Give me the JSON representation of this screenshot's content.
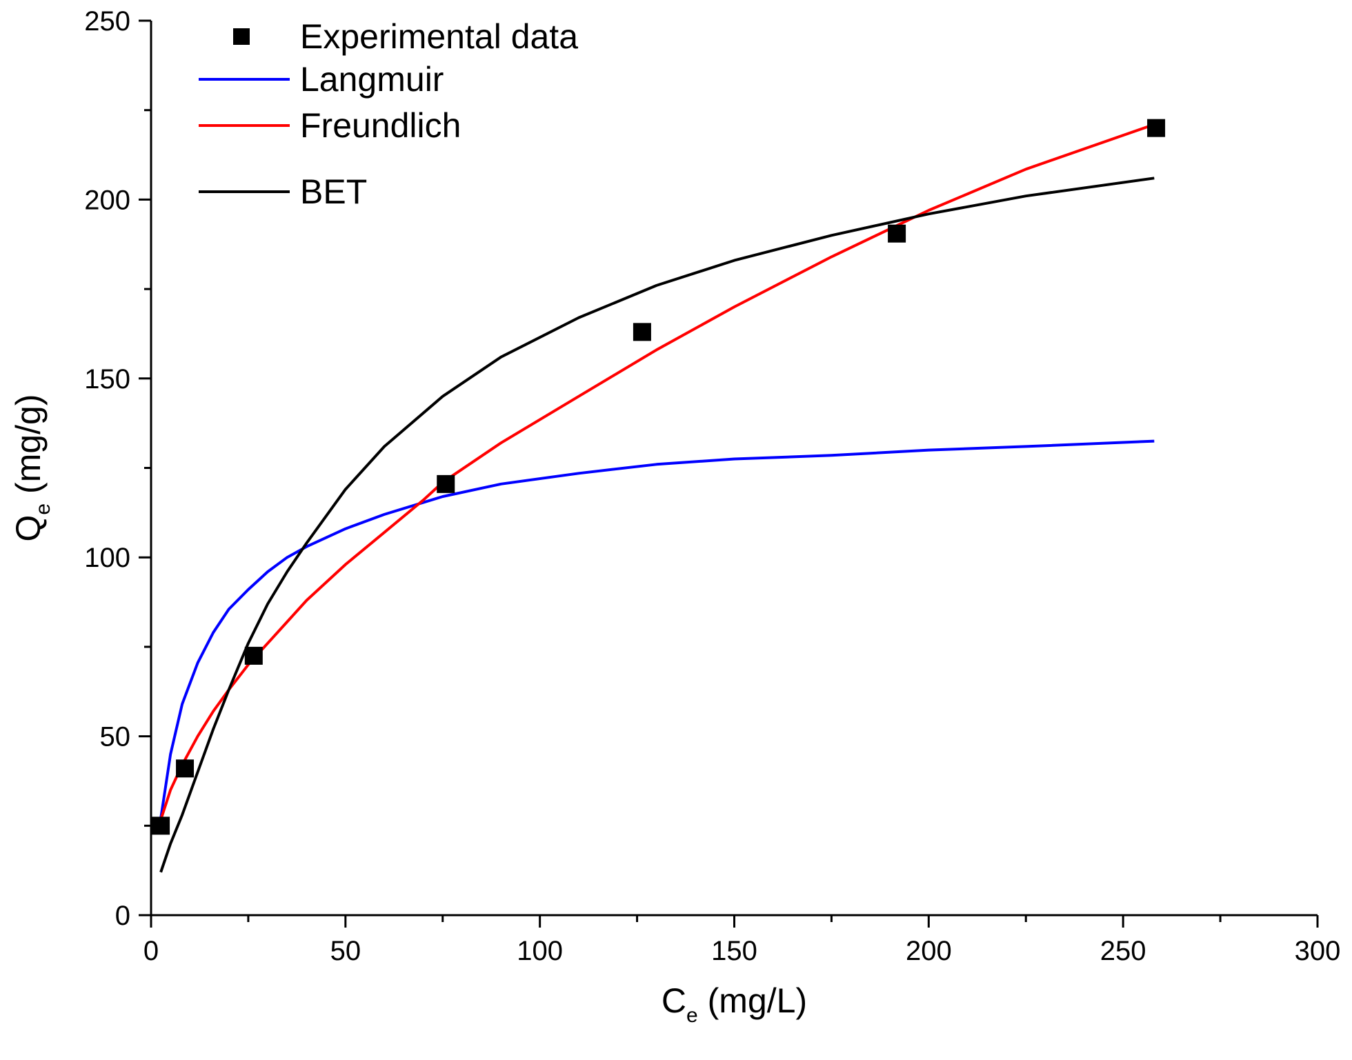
{
  "chart_data": {
    "type": "scatter",
    "title": "",
    "xlabel": {
      "main": "C",
      "sub": "e",
      "unit": "(mg/L)"
    },
    "ylabel": {
      "main": "Q",
      "sub": "e",
      "unit": "(mg/g)"
    },
    "xlim": [
      0,
      300
    ],
    "ylim": [
      0,
      250
    ],
    "x_ticks": [
      0,
      50,
      100,
      150,
      200,
      250,
      300
    ],
    "x_tick_labels": [
      "0",
      "50",
      "100",
      "150",
      "200",
      "250",
      "300"
    ],
    "y_ticks": [
      0,
      50,
      100,
      150,
      200,
      250
    ],
    "y_tick_labels": [
      "0",
      "50",
      "100",
      "150",
      "200",
      "250"
    ],
    "grid": false,
    "legend_position": "top-left",
    "legend": [
      "Experimental data",
      "Langmuir",
      "Freundlich",
      "BET"
    ],
    "series": [
      {
        "name": "Experimental data",
        "kind": "scatter",
        "marker": "square",
        "color": "#000000",
        "x": [
          2.5,
          8.7,
          26.4,
          75.8,
          126.3,
          191.8,
          258.5
        ],
        "y": [
          25.0,
          41.0,
          72.5,
          120.5,
          163.0,
          190.5,
          220.0
        ]
      },
      {
        "name": "Langmuir",
        "kind": "line",
        "color": "#0000ff",
        "x": [
          2,
          5,
          8,
          12,
          16,
          20,
          25,
          30,
          35,
          40,
          50,
          60,
          75,
          90,
          110,
          130,
          150,
          175,
          200,
          225,
          258
        ],
        "y": [
          23.5,
          45.0,
          59.0,
          70.5,
          79.0,
          85.5,
          91.0,
          96.0,
          100.0,
          103.0,
          108.0,
          112.0,
          117.0,
          120.5,
          123.5,
          126.0,
          127.5,
          128.5,
          130.0,
          131.0,
          132.5
        ]
      },
      {
        "name": "Freundlich",
        "kind": "line",
        "color": "#ff0000",
        "x": [
          2,
          5,
          8,
          12,
          16,
          20,
          25,
          30,
          35,
          40,
          50,
          60,
          70,
          75,
          90,
          110,
          130,
          150,
          175,
          200,
          225,
          258
        ],
        "y": [
          25.0,
          35.0,
          42.0,
          50.0,
          57.0,
          63.0,
          70.0,
          76.0,
          82.0,
          88.0,
          98.0,
          107.0,
          116.0,
          121.0,
          132.0,
          145.0,
          158.0,
          170.0,
          184.0,
          197.0,
          208.5,
          221.0
        ]
      },
      {
        "name": "BET",
        "kind": "line",
        "color": "#000000",
        "x": [
          2.5,
          5,
          8,
          12,
          16,
          20,
          25,
          30,
          35,
          40,
          50,
          60,
          75,
          90,
          110,
          130,
          150,
          175,
          200,
          225,
          258
        ],
        "y": [
          12.0,
          20.0,
          28.0,
          40.0,
          52.0,
          63.0,
          76.0,
          87.0,
          96.0,
          104.0,
          119.0,
          131.0,
          145.0,
          156.0,
          167.0,
          176.0,
          183.0,
          190.0,
          196.0,
          201.0,
          206.0
        ]
      }
    ]
  }
}
